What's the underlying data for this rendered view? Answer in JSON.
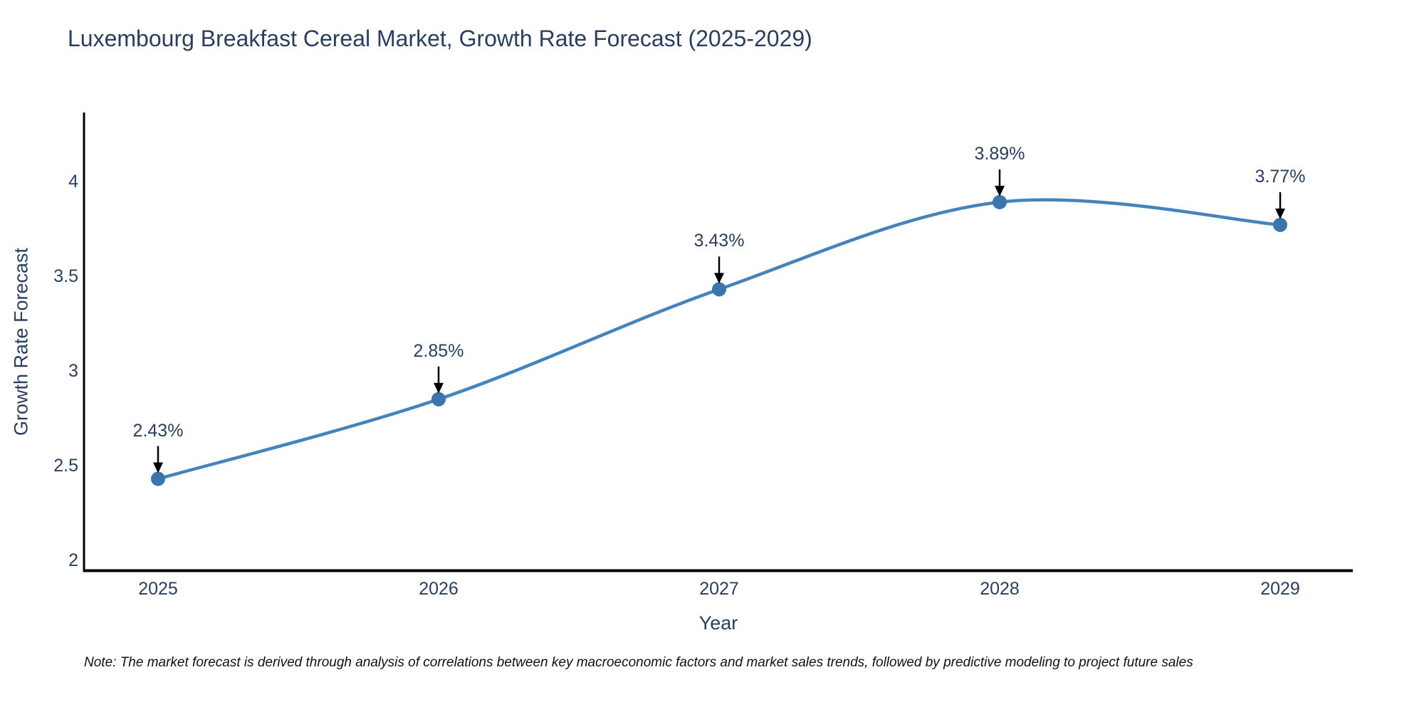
{
  "note": {
    "text": "Note: The market forecast is derived through analysis of correlations between key macroeconomic factors and market sales trends, followed by predictive modeling to project future sales"
  },
  "chart_data": {
    "type": "line",
    "title": "Luxembourg Breakfast Cereal Market, Growth Rate Forecast (2025-2029)",
    "xlabel": "Year",
    "ylabel": "Growth Rate Forecast",
    "x": [
      2025,
      2026,
      2027,
      2028,
      2029
    ],
    "series": [
      {
        "name": "Growth Rate Forecast",
        "values": [
          2.43,
          2.85,
          3.43,
          3.89,
          3.77
        ]
      }
    ],
    "point_labels": [
      "2.43%",
      "2.85%",
      "3.43%",
      "3.89%",
      "3.77%"
    ],
    "xtick_labels": [
      "2025",
      "2026",
      "2027",
      "2028",
      "2029"
    ],
    "ytick_values": [
      2,
      2.5,
      3,
      3.5,
      4
    ],
    "ytick_labels": [
      "2",
      "2.5",
      "3",
      "3.5",
      "4"
    ],
    "ylim": [
      1.94,
      4.36
    ],
    "grid": false,
    "legend": "none",
    "curve": "spline",
    "annotations_have_arrows": true,
    "colors": {
      "line": "#4583bd",
      "marker": "#3a76ad",
      "axis": "#000000",
      "text": "#2a3f5f",
      "annotation_arrow": "#000000",
      "background": "#ffffff"
    }
  }
}
